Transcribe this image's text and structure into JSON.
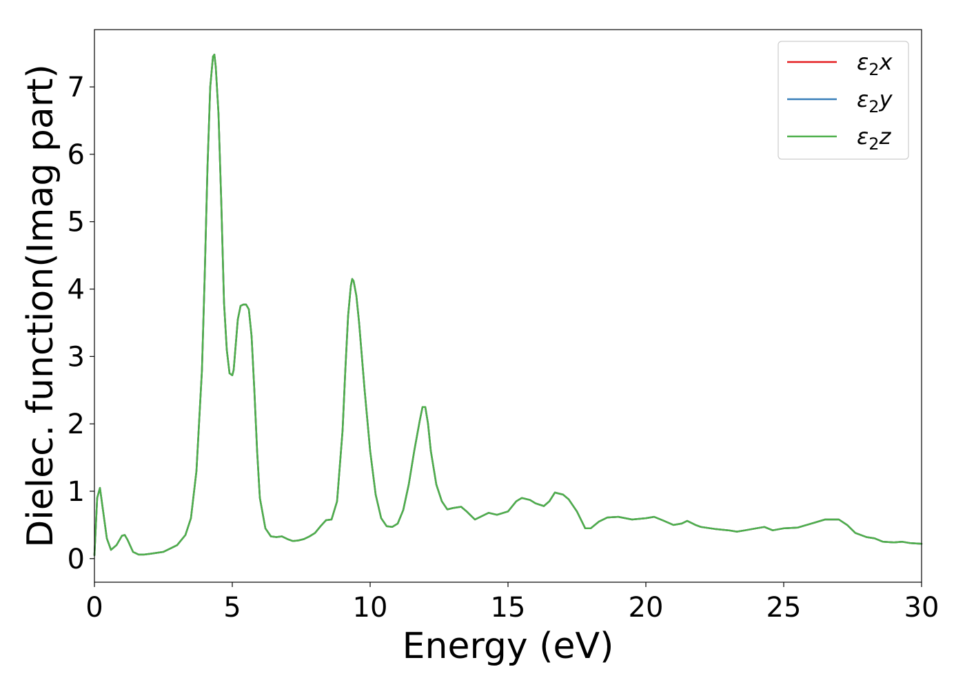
{
  "chart_data": {
    "type": "line",
    "title": "",
    "xlabel": "Energy (eV)",
    "ylabel": "Dielec. function(Imag part)",
    "xlim": [
      0,
      30
    ],
    "ylim": [
      -0.35,
      7.85
    ],
    "xticks": [
      0,
      5,
      10,
      15,
      20,
      25,
      30
    ],
    "yticks": [
      0,
      1,
      2,
      3,
      4,
      5,
      6,
      7
    ],
    "grid": false,
    "legend_position": "top-right",
    "series": [
      {
        "name": "ε2x",
        "legend_main": "ε",
        "legend_sub": "2",
        "legend_tail": "x",
        "color": "#e41a1c"
      },
      {
        "name": "ε2y",
        "legend_main": "ε",
        "legend_sub": "2",
        "legend_tail": "y",
        "color": "#377eb8"
      },
      {
        "name": "ε2z",
        "legend_main": "ε",
        "legend_sub": "2",
        "legend_tail": "z",
        "color": "#4daf4a"
      }
    ],
    "x": [
      0,
      0.1,
      0.2,
      0.3,
      0.45,
      0.6,
      0.8,
      1.0,
      1.1,
      1.2,
      1.4,
      1.6,
      1.8,
      2.0,
      2.5,
      3.0,
      3.3,
      3.5,
      3.7,
      3.9,
      4.0,
      4.1,
      4.2,
      4.3,
      4.35,
      4.4,
      4.5,
      4.6,
      4.7,
      4.8,
      4.9,
      5.0,
      5.05,
      5.1,
      5.2,
      5.3,
      5.4,
      5.5,
      5.6,
      5.7,
      5.8,
      5.9,
      6.0,
      6.2,
      6.4,
      6.6,
      6.8,
      7.0,
      7.2,
      7.4,
      7.6,
      7.8,
      8.0,
      8.2,
      8.4,
      8.6,
      8.8,
      9.0,
      9.1,
      9.2,
      9.3,
      9.35,
      9.4,
      9.5,
      9.6,
      9.7,
      9.8,
      10.0,
      10.2,
      10.4,
      10.6,
      10.8,
      11.0,
      11.2,
      11.4,
      11.6,
      11.8,
      11.9,
      12.0,
      12.1,
      12.2,
      12.4,
      12.6,
      12.8,
      13.0,
      13.3,
      13.5,
      13.8,
      14.0,
      14.3,
      14.6,
      15.0,
      15.3,
      15.5,
      15.8,
      16.0,
      16.3,
      16.5,
      16.7,
      17.0,
      17.2,
      17.5,
      17.8,
      18.0,
      18.3,
      18.6,
      19.0,
      19.5,
      20.0,
      20.3,
      20.6,
      21.0,
      21.3,
      21.5,
      21.8,
      22.0,
      22.5,
      23.0,
      23.3,
      23.6,
      24.0,
      24.3,
      24.6,
      25.0,
      25.5,
      26.0,
      26.5,
      27.0,
      27.3,
      27.6,
      28.0,
      28.3,
      28.6,
      29.0,
      29.3,
      29.6,
      30.0
    ],
    "y": [
      0.05,
      0.9,
      1.05,
      0.75,
      0.3,
      0.13,
      0.2,
      0.34,
      0.35,
      0.28,
      0.1,
      0.06,
      0.06,
      0.07,
      0.1,
      0.2,
      0.35,
      0.6,
      1.3,
      2.8,
      4.2,
      5.8,
      7.0,
      7.45,
      7.48,
      7.3,
      6.6,
      5.3,
      3.8,
      3.1,
      2.75,
      2.72,
      2.8,
      3.05,
      3.55,
      3.75,
      3.77,
      3.77,
      3.7,
      3.3,
      2.5,
      1.6,
      0.9,
      0.45,
      0.33,
      0.32,
      0.33,
      0.29,
      0.26,
      0.27,
      0.29,
      0.33,
      0.38,
      0.48,
      0.57,
      0.58,
      0.85,
      1.9,
      2.8,
      3.6,
      4.05,
      4.15,
      4.12,
      3.9,
      3.5,
      3.0,
      2.5,
      1.6,
      0.95,
      0.6,
      0.48,
      0.47,
      0.52,
      0.72,
      1.1,
      1.6,
      2.05,
      2.25,
      2.25,
      2.0,
      1.6,
      1.1,
      0.85,
      0.73,
      0.75,
      0.77,
      0.7,
      0.58,
      0.62,
      0.68,
      0.65,
      0.7,
      0.85,
      0.9,
      0.87,
      0.82,
      0.78,
      0.85,
      0.98,
      0.95,
      0.88,
      0.7,
      0.45,
      0.45,
      0.55,
      0.61,
      0.62,
      0.58,
      0.6,
      0.62,
      0.57,
      0.5,
      0.52,
      0.56,
      0.5,
      0.47,
      0.44,
      0.42,
      0.4,
      0.42,
      0.45,
      0.47,
      0.42,
      0.45,
      0.46,
      0.52,
      0.58,
      0.58,
      0.5,
      0.38,
      0.32,
      0.3,
      0.25,
      0.24,
      0.25,
      0.23,
      0.22
    ]
  }
}
